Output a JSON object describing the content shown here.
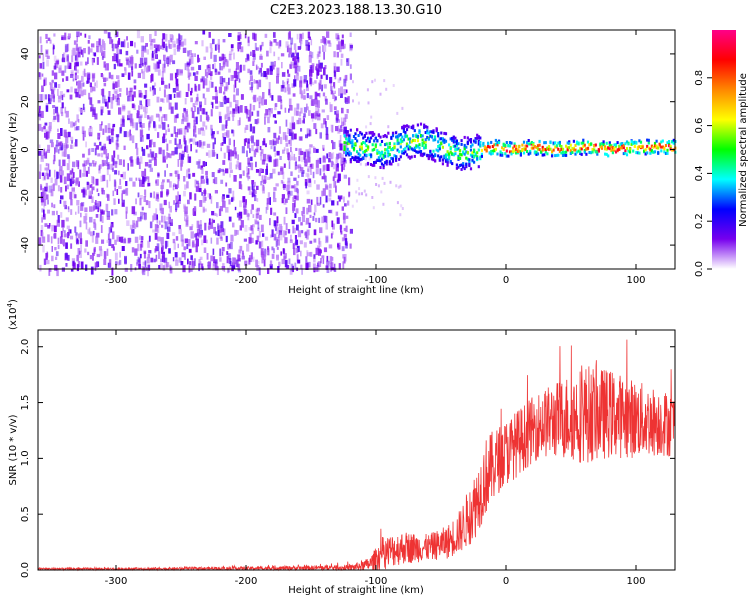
{
  "figure_title": "C2E3.2023.188.13.30.G10",
  "chart_data": [
    {
      "type": "heatmap",
      "title": "C2E3.2023.188.13.30.G10",
      "xlabel": "Height of straight line (km)",
      "ylabel": "Frequency (Hz)",
      "xlim": [
        -360,
        130
      ],
      "ylim": [
        -50,
        50
      ],
      "x_ticks": [
        -300,
        -200,
        -100,
        0,
        100
      ],
      "y_ticks": [
        -40,
        -20,
        0,
        20,
        40
      ],
      "noise_region_x": [
        -360,
        -120
      ],
      "signal_trace": {
        "x": [
          -125,
          -110,
          -95,
          -80,
          -65,
          -55,
          -45,
          -35,
          -25,
          -10,
          0,
          20,
          40,
          60,
          80,
          100,
          130
        ],
        "y": [
          2,
          1,
          -1,
          3,
          4,
          2,
          0,
          -2,
          -1,
          1,
          0,
          1,
          0,
          1,
          0,
          1,
          1
        ]
      },
      "colorbar": {
        "label": "Normalized spectral amplitude",
        "range": [
          0.0,
          1.0
        ],
        "ticks": [
          "0.0",
          "0.2",
          "0.4",
          "0.6",
          "0.8"
        ],
        "colors": [
          "#ffffff",
          "#7700ee",
          "#0000ff",
          "#00ffff",
          "#00ff00",
          "#ffff00",
          "#ff8800",
          "#ff0000",
          "#ff0088"
        ]
      }
    },
    {
      "type": "line",
      "xlabel": "Height of straight line (km)",
      "ylabel": "SNR (10 * v/v)",
      "scale_label": "(x10",
      "scale_exponent": "4",
      "scale_close": ")",
      "xlim": [
        -360,
        130
      ],
      "ylim": [
        0,
        2.15
      ],
      "x_ticks": [
        -300,
        -200,
        -100,
        0,
        100
      ],
      "y_ticks": [
        "0.0",
        "0.5",
        "1.0",
        "1.5",
        "2.0"
      ],
      "line_color": "#ee3333",
      "envelope": {
        "x": [
          -360,
          -300,
          -200,
          -150,
          -120,
          -105,
          -95,
          -80,
          -60,
          -45,
          -35,
          -25,
          -15,
          -5,
          10,
          25,
          40,
          60,
          80,
          100,
          120,
          130
        ],
        "base": [
          0.01,
          0.01,
          0.015,
          0.02,
          0.02,
          0.05,
          0.15,
          0.2,
          0.2,
          0.25,
          0.35,
          0.55,
          0.85,
          1.0,
          1.15,
          1.3,
          1.35,
          1.4,
          1.4,
          1.35,
          1.32,
          1.3
        ],
        "spread": [
          0.01,
          0.01,
          0.015,
          0.02,
          0.025,
          0.06,
          0.15,
          0.15,
          0.12,
          0.15,
          0.2,
          0.3,
          0.35,
          0.3,
          0.3,
          0.3,
          0.35,
          0.45,
          0.4,
          0.35,
          0.3,
          0.3
        ]
      }
    }
  ]
}
